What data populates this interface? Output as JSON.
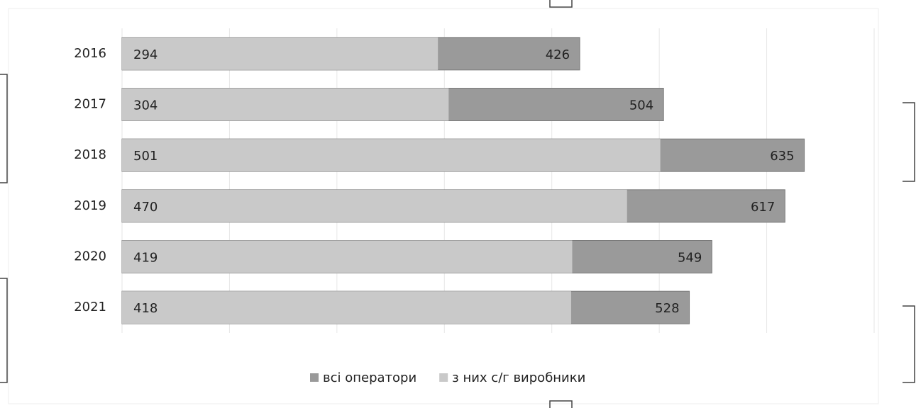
{
  "chart_data": {
    "type": "bar",
    "orientation": "horizontal",
    "overlap": true,
    "categories": [
      "2016",
      "2017",
      "2018",
      "2019",
      "2020",
      "2021"
    ],
    "series": [
      {
        "name": "всі оператори",
        "color": "#9a9a9a",
        "values": [
          426,
          504,
          635,
          617,
          549,
          528
        ]
      },
      {
        "name": "з них с/г виробники",
        "color": "#c9c9c9",
        "values": [
          294,
          304,
          501,
          470,
          419,
          418
        ]
      }
    ],
    "xlim": [
      0,
      700
    ],
    "xticks": [
      0,
      100,
      200,
      300,
      400,
      500,
      600,
      700
    ],
    "grid": true,
    "legend": "bottom"
  }
}
